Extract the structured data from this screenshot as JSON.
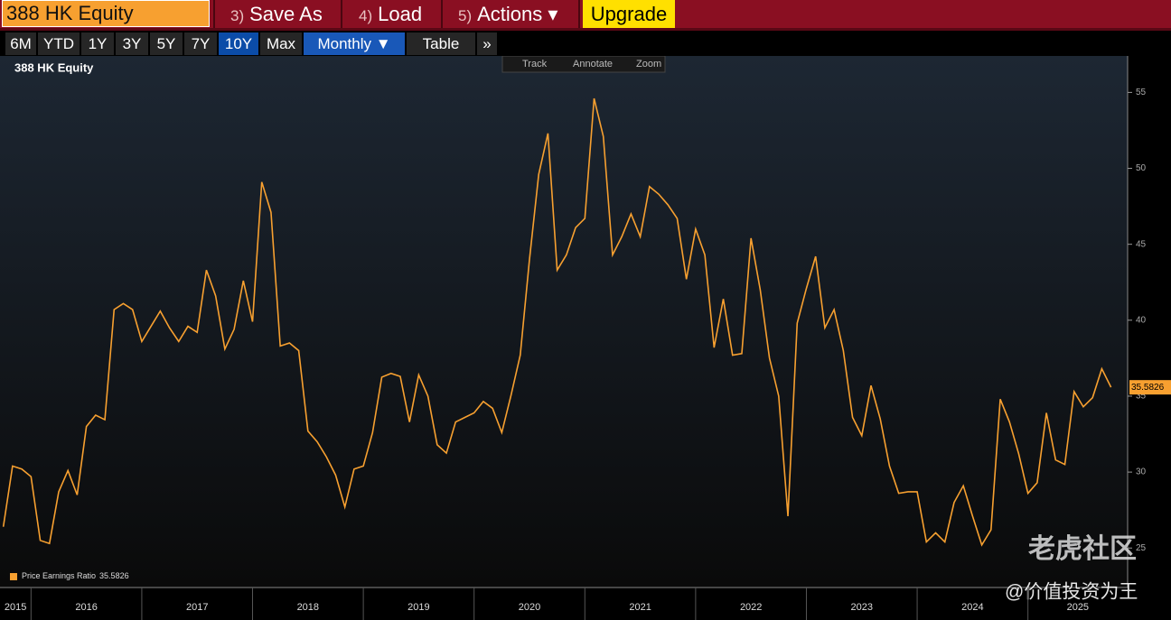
{
  "toolbar": {
    "security": "388 HK Equity",
    "buttons": [
      {
        "key": "3)",
        "label": "Save As"
      },
      {
        "key": "4)",
        "label": "Load"
      },
      {
        "key": "5)",
        "label": "Actions ▾"
      }
    ],
    "upgrade": "Upgrade"
  },
  "periods": {
    "items": [
      "6M",
      "YTD",
      "1Y",
      "3Y",
      "5Y",
      "7Y",
      "10Y",
      "Max"
    ],
    "active": 6,
    "frequency": "Monthly ▼",
    "table": "Table",
    "more": "»"
  },
  "chart_tools": [
    "Track",
    "Annotate",
    "Zoom"
  ],
  "watermark": {
    "brand": "老虎社区",
    "handle": "@价值投资为王"
  },
  "chart_data": {
    "type": "line",
    "title": "388 HK Equity",
    "x": [
      2015.75,
      2015.8333,
      2015.9167,
      2016,
      2016.0833,
      2016.1667,
      2016.25,
      2016.3333,
      2016.4167,
      2016.5,
      2016.5833,
      2016.6667,
      2016.75,
      2016.8333,
      2016.9167,
      2017,
      2017.0833,
      2017.1667,
      2017.25,
      2017.3333,
      2017.4167,
      2017.5,
      2017.5833,
      2017.6667,
      2017.75,
      2017.8333,
      2017.9167,
      2018,
      2018.0833,
      2018.1667,
      2018.25,
      2018.3333,
      2018.4167,
      2018.5,
      2018.5833,
      2018.6667,
      2018.75,
      2018.8333,
      2018.9167,
      2019,
      2019.0833,
      2019.1667,
      2019.25,
      2019.3333,
      2019.4167,
      2019.5,
      2019.5833,
      2019.6667,
      2019.75,
      2019.8333,
      2019.9167,
      2020,
      2020.0833,
      2020.1667,
      2020.25,
      2020.3333,
      2020.4167,
      2020.5,
      2020.5833,
      2020.6667,
      2020.75,
      2020.8333,
      2020.9167,
      2021,
      2021.0833,
      2021.1667,
      2021.25,
      2021.3333,
      2021.4167,
      2021.5,
      2021.5833,
      2021.6667,
      2021.75,
      2021.8333,
      2021.9167,
      2022,
      2022.0833,
      2022.1667,
      2022.25,
      2022.3333,
      2022.4167,
      2022.5,
      2022.5833,
      2022.6667,
      2022.75,
      2022.8333,
      2022.9167,
      2023,
      2023.0833,
      2023.1667,
      2023.25,
      2023.3333,
      2023.4167,
      2023.5,
      2023.5833,
      2023.6667,
      2023.75,
      2023.8333,
      2023.9167,
      2024,
      2024.0833,
      2024.1667,
      2024.25,
      2024.3333,
      2024.4167,
      2024.5,
      2024.5833,
      2024.6667,
      2024.75,
      2024.8333,
      2024.9167,
      2025,
      2025.0833,
      2025.1667,
      2025.25,
      2025.3333,
      2025.4167,
      2025.5,
      2025.5833,
      2025.6667,
      2025.75
    ],
    "series": [
      {
        "name": "Price Earnings Ratio",
        "color": "#f7a030",
        "values": [
          26.4,
          30.4,
          30.2,
          29.7,
          25.5,
          25.3,
          28.7,
          30.1,
          28.5,
          33.0,
          33.75,
          33.45,
          40.7,
          41.1,
          40.7,
          38.6,
          39.6,
          40.6,
          39.5,
          38.6,
          39.6,
          39.2,
          43.3,
          41.6,
          38.1,
          39.4,
          42.6,
          39.9,
          49.1,
          47.1,
          38.3,
          38.5,
          38.0,
          32.7,
          32.0,
          31.0,
          29.8,
          27.7,
          30.2,
          30.4,
          32.6,
          36.25,
          36.5,
          36.3,
          33.3,
          36.4,
          35.0,
          31.8,
          31.25,
          33.3,
          33.6,
          33.9,
          34.65,
          34.2,
          32.6,
          35.05,
          37.7,
          44.0,
          49.6,
          52.3,
          43.3,
          44.3,
          46.1,
          46.7,
          54.6,
          52.1,
          44.3,
          45.5,
          47.0,
          45.5,
          48.8,
          48.3,
          47.6,
          46.7,
          42.7,
          46.0,
          44.3,
          38.2,
          41.4,
          37.7,
          37.8,
          45.4,
          42.0,
          37.5,
          35.0,
          27.1,
          39.8,
          42.1,
          44.2,
          39.5,
          40.7,
          38.0,
          33.6,
          32.4,
          35.7,
          33.5,
          30.4,
          28.6,
          28.7,
          28.7,
          25.4,
          26.0,
          25.4,
          28.0,
          29.1,
          27.1,
          25.2,
          26.2,
          34.8,
          33.3,
          31.2,
          28.6,
          29.3,
          33.9,
          30.8,
          30.5,
          35.3,
          34.3,
          34.9,
          36.8,
          35.5826
        ]
      }
    ],
    "xlim": [
      2015.72,
      2025.9
    ],
    "xticks": [
      {
        "value": 2015,
        "label": "2015"
      },
      {
        "value": 2016,
        "label": "2016"
      },
      {
        "value": 2017,
        "label": "2017"
      },
      {
        "value": 2018,
        "label": "2018"
      },
      {
        "value": 2019,
        "label": "2019"
      },
      {
        "value": 2020,
        "label": "2020"
      },
      {
        "value": 2021,
        "label": "2021"
      },
      {
        "value": 2022,
        "label": "2022"
      },
      {
        "value": 2023,
        "label": "2023"
      },
      {
        "value": 2024,
        "label": "2024"
      },
      {
        "value": 2025,
        "label": "2025"
      }
    ],
    "ylim": [
      22.4,
      57.4
    ],
    "yticks": [
      25,
      30,
      35,
      40,
      45,
      50,
      55
    ],
    "grid": false,
    "legend": "lower left"
  }
}
